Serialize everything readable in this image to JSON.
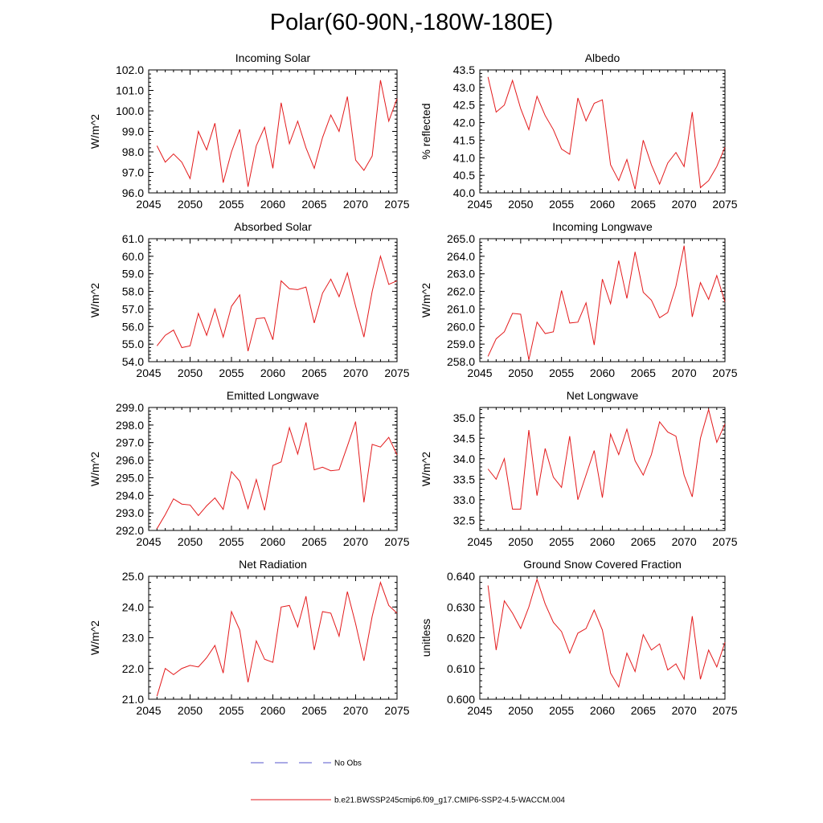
{
  "title": "Polar(60-90N,-180W-180E)",
  "legend": {
    "obs_label": "No Obs",
    "obs_color": "#5555cc",
    "model_label": "b.e21.BWSSP245cmip6.f09_g17.CMIP6-SSP2-4.5-WACCM.004",
    "model_color": "#e31a1c"
  },
  "chart_data": [
    {
      "type": "line",
      "id": "incoming-solar",
      "title": "Incoming Solar",
      "ylabel": "W/m^2",
      "xlabel": "",
      "xlim": [
        2045,
        2075
      ],
      "xticks": [
        2045,
        2050,
        2055,
        2060,
        2065,
        2070,
        2075
      ],
      "ylim": [
        96.0,
        102.0
      ],
      "yticks": [
        "96.0",
        "97.0",
        "98.0",
        "99.0",
        "100.0",
        "101.0",
        "102.0"
      ],
      "x": [
        2046,
        2047,
        2048,
        2049,
        2050,
        2051,
        2052,
        2053,
        2054,
        2055,
        2056,
        2057,
        2058,
        2059,
        2060,
        2061,
        2062,
        2063,
        2064,
        2065,
        2066,
        2067,
        2068,
        2069,
        2070,
        2071,
        2072,
        2073,
        2074,
        2075
      ],
      "series": [
        {
          "name": "b.e21.BWSSP245cmip6.f09_g17.CMIP6-SSP2-4.5-WACCM.004",
          "values": [
            98.3,
            97.5,
            97.9,
            97.5,
            96.7,
            99.0,
            98.1,
            99.4,
            96.5,
            98.0,
            99.1,
            96.3,
            98.3,
            99.2,
            97.2,
            100.4,
            98.4,
            99.5,
            98.2,
            97.2,
            98.7,
            99.8,
            99.0,
            100.7,
            97.6,
            97.1,
            97.8,
            101.5,
            99.5,
            100.6
          ]
        }
      ]
    },
    {
      "type": "line",
      "id": "albedo",
      "title": "Albedo",
      "ylabel": "% reflected",
      "xlabel": "",
      "xlim": [
        2045,
        2075
      ],
      "xticks": [
        2045,
        2050,
        2055,
        2060,
        2065,
        2070,
        2075
      ],
      "ylim": [
        40.0,
        43.5
      ],
      "yticks": [
        "40.0",
        "40.5",
        "41.0",
        "41.5",
        "42.0",
        "42.5",
        "43.0",
        "43.5"
      ],
      "x": [
        2046,
        2047,
        2048,
        2049,
        2050,
        2051,
        2052,
        2053,
        2054,
        2055,
        2056,
        2057,
        2058,
        2059,
        2060,
        2061,
        2062,
        2063,
        2064,
        2065,
        2066,
        2067,
        2068,
        2069,
        2070,
        2071,
        2072,
        2073,
        2074,
        2075
      ],
      "series": [
        {
          "name": "b.e21.BWSSP245cmip6.f09_g17.CMIP6-SSP2-4.5-WACCM.004",
          "values": [
            43.3,
            42.3,
            42.5,
            43.2,
            42.4,
            41.8,
            42.75,
            42.2,
            41.8,
            41.25,
            41.1,
            42.7,
            42.05,
            42.55,
            42.65,
            40.8,
            40.35,
            40.95,
            40.1,
            41.5,
            40.8,
            40.25,
            40.85,
            41.15,
            40.75,
            42.3,
            40.15,
            40.35,
            40.75,
            41.3
          ]
        }
      ]
    },
    {
      "type": "line",
      "id": "absorbed-solar",
      "title": "Absorbed Solar",
      "ylabel": "W/m^2",
      "xlabel": "",
      "xlim": [
        2045,
        2075
      ],
      "xticks": [
        2045,
        2050,
        2055,
        2060,
        2065,
        2070,
        2075
      ],
      "ylim": [
        54.0,
        61.0
      ],
      "yticks": [
        "54.0",
        "55.0",
        "56.0",
        "57.0",
        "58.0",
        "59.0",
        "60.0",
        "61.0"
      ],
      "x": [
        2046,
        2047,
        2048,
        2049,
        2050,
        2051,
        2052,
        2053,
        2054,
        2055,
        2056,
        2057,
        2058,
        2059,
        2060,
        2061,
        2062,
        2063,
        2064,
        2065,
        2066,
        2067,
        2068,
        2069,
        2070,
        2071,
        2072,
        2073,
        2074,
        2075
      ],
      "series": [
        {
          "name": "b.e21.BWSSP245cmip6.f09_g17.CMIP6-SSP2-4.5-WACCM.004",
          "values": [
            54.9,
            55.5,
            55.8,
            54.8,
            54.9,
            56.75,
            55.5,
            57.0,
            55.4,
            57.15,
            57.8,
            54.6,
            56.45,
            56.5,
            55.25,
            58.6,
            58.15,
            58.1,
            58.25,
            56.2,
            57.9,
            58.7,
            57.7,
            59.05,
            57.15,
            55.4,
            58.0,
            60.0,
            58.4,
            58.6
          ]
        }
      ]
    },
    {
      "type": "line",
      "id": "incoming-longwave",
      "title": "Incoming Longwave",
      "ylabel": "W/m^2",
      "xlabel": "",
      "xlim": [
        2045,
        2075
      ],
      "xticks": [
        2045,
        2050,
        2055,
        2060,
        2065,
        2070,
        2075
      ],
      "ylim": [
        258.0,
        265.0
      ],
      "yticks": [
        "258.0",
        "259.0",
        "260.0",
        "261.0",
        "262.0",
        "263.0",
        "264.0",
        "265.0"
      ],
      "x": [
        2046,
        2047,
        2048,
        2049,
        2050,
        2051,
        2052,
        2053,
        2054,
        2055,
        2056,
        2057,
        2058,
        2059,
        2060,
        2061,
        2062,
        2063,
        2064,
        2065,
        2066,
        2067,
        2068,
        2069,
        2070,
        2071,
        2072,
        2073,
        2074,
        2075
      ],
      "series": [
        {
          "name": "b.e21.BWSSP245cmip6.f09_g17.CMIP6-SSP2-4.5-WACCM.004",
          "values": [
            258.3,
            259.3,
            259.7,
            260.75,
            260.7,
            258.1,
            260.25,
            259.6,
            259.7,
            262.05,
            260.2,
            260.25,
            261.35,
            258.95,
            262.7,
            261.3,
            263.75,
            261.6,
            264.25,
            261.95,
            261.5,
            260.5,
            260.8,
            262.3,
            264.6,
            260.55,
            262.5,
            261.55,
            262.9,
            261.4
          ]
        }
      ]
    },
    {
      "type": "line",
      "id": "emitted-longwave",
      "title": "Emitted Longwave",
      "ylabel": "W/m^2",
      "xlabel": "",
      "xlim": [
        2045,
        2075
      ],
      "xticks": [
        2045,
        2050,
        2055,
        2060,
        2065,
        2070,
        2075
      ],
      "ylim": [
        292.0,
        299.0
      ],
      "yticks": [
        "292.0",
        "293.0",
        "294.0",
        "295.0",
        "296.0",
        "297.0",
        "298.0",
        "299.0"
      ],
      "x": [
        2046,
        2047,
        2048,
        2049,
        2050,
        2051,
        2052,
        2053,
        2054,
        2055,
        2056,
        2057,
        2058,
        2059,
        2060,
        2061,
        2062,
        2063,
        2064,
        2065,
        2066,
        2067,
        2068,
        2069,
        2070,
        2071,
        2072,
        2073,
        2074,
        2075
      ],
      "series": [
        {
          "name": "b.e21.BWSSP245cmip6.f09_g17.CMIP6-SSP2-4.5-WACCM.004",
          "values": [
            292.1,
            292.9,
            293.8,
            293.5,
            293.45,
            292.85,
            293.4,
            293.85,
            293.2,
            295.35,
            294.8,
            293.25,
            294.9,
            293.15,
            295.7,
            295.9,
            297.85,
            296.35,
            298.15,
            295.45,
            295.6,
            295.4,
            295.45,
            296.8,
            298.2,
            293.6,
            296.9,
            296.75,
            297.3,
            296.3
          ]
        }
      ]
    },
    {
      "type": "line",
      "id": "net-longwave",
      "title": "Net Longwave",
      "ylabel": "W/m^2",
      "xlabel": "",
      "xlim": [
        2045,
        2075
      ],
      "xticks": [
        2045,
        2050,
        2055,
        2060,
        2065,
        2070,
        2075
      ],
      "ylim": [
        32.25,
        35.25
      ],
      "yticks": [
        "32.5",
        "33.0",
        "33.5",
        "34.0",
        "34.5",
        "35.0"
      ],
      "ytick_values": [
        32.5,
        33.0,
        33.5,
        34.0,
        34.5,
        35.0
      ],
      "x": [
        2046,
        2047,
        2048,
        2049,
        2050,
        2051,
        2052,
        2053,
        2054,
        2055,
        2056,
        2057,
        2058,
        2059,
        2060,
        2061,
        2062,
        2063,
        2064,
        2065,
        2066,
        2067,
        2068,
        2069,
        2070,
        2071,
        2072,
        2073,
        2074,
        2075
      ],
      "series": [
        {
          "name": "b.e21.BWSSP245cmip6.f09_g17.CMIP6-SSP2-4.5-WACCM.004",
          "values": [
            33.75,
            33.5,
            34.0,
            32.77,
            32.77,
            34.7,
            33.1,
            34.25,
            33.55,
            33.3,
            34.55,
            33.0,
            33.6,
            34.2,
            33.05,
            34.6,
            34.1,
            34.72,
            33.95,
            33.6,
            34.1,
            34.9,
            34.65,
            34.55,
            33.6,
            33.07,
            34.5,
            35.2,
            34.4,
            34.85
          ]
        }
      ]
    },
    {
      "type": "line",
      "id": "net-radiation",
      "title": "Net Radiation",
      "ylabel": "W/m^2",
      "xlabel": "",
      "xlim": [
        2045,
        2075
      ],
      "xticks": [
        2045,
        2050,
        2055,
        2060,
        2065,
        2070,
        2075
      ],
      "ylim": [
        21.0,
        25.0
      ],
      "yticks": [
        "21.0",
        "22.0",
        "23.0",
        "24.0",
        "25.0"
      ],
      "x": [
        2046,
        2047,
        2048,
        2049,
        2050,
        2051,
        2052,
        2053,
        2054,
        2055,
        2056,
        2057,
        2058,
        2059,
        2060,
        2061,
        2062,
        2063,
        2064,
        2065,
        2066,
        2067,
        2068,
        2069,
        2070,
        2071,
        2072,
        2073,
        2074,
        2075
      ],
      "series": [
        {
          "name": "b.e21.BWSSP245cmip6.f09_g17.CMIP6-SSP2-4.5-WACCM.004",
          "values": [
            21.1,
            22.0,
            21.8,
            22.0,
            22.1,
            22.05,
            22.35,
            22.75,
            21.85,
            23.85,
            23.25,
            21.55,
            22.9,
            22.3,
            22.2,
            24.0,
            24.05,
            23.35,
            24.35,
            22.6,
            23.85,
            23.8,
            23.05,
            24.5,
            23.45,
            22.25,
            23.7,
            24.8,
            24.05,
            23.8
          ]
        }
      ]
    },
    {
      "type": "line",
      "id": "ground-snow-covered-fraction",
      "title": "Ground Snow Covered Fraction",
      "ylabel": "unitless",
      "xlabel": "",
      "xlim": [
        2045,
        2075
      ],
      "xticks": [
        2045,
        2050,
        2055,
        2060,
        2065,
        2070,
        2075
      ],
      "ylim": [
        0.6,
        0.64
      ],
      "yticks": [
        "0.600",
        "0.610",
        "0.620",
        "0.630",
        "0.640"
      ],
      "x": [
        2046,
        2047,
        2048,
        2049,
        2050,
        2051,
        2052,
        2053,
        2054,
        2055,
        2056,
        2057,
        2058,
        2059,
        2060,
        2061,
        2062,
        2063,
        2064,
        2065,
        2066,
        2067,
        2068,
        2069,
        2070,
        2071,
        2072,
        2073,
        2074,
        2075
      ],
      "series": [
        {
          "name": "b.e21.BWSSP245cmip6.f09_g17.CMIP6-SSP2-4.5-WACCM.004",
          "values": [
            0.637,
            0.616,
            0.632,
            0.628,
            0.623,
            0.63,
            0.639,
            0.631,
            0.625,
            0.622,
            0.615,
            0.6215,
            0.623,
            0.629,
            0.6225,
            0.6085,
            0.604,
            0.615,
            0.609,
            0.621,
            0.616,
            0.618,
            0.6095,
            0.6115,
            0.6065,
            0.627,
            0.6065,
            0.616,
            0.6105,
            0.6185
          ]
        }
      ]
    }
  ]
}
